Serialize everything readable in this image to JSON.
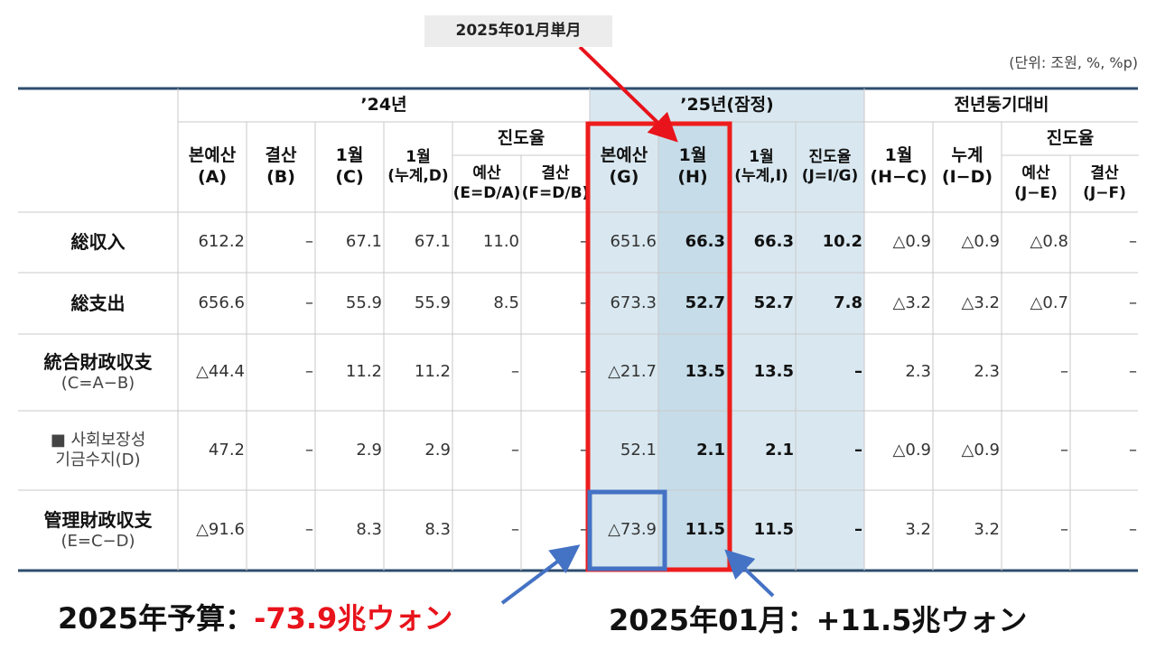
{
  "callout_top": "2025年01月単月",
  "unit_note": "(단위: 조원, %, %p)",
  "table": {
    "groups": [
      "’24년",
      "’25년(잠정)",
      "전년동기대비"
    ],
    "sub_groups": [
      "진도율",
      "진도율"
    ],
    "columns": [
      "본예산\n(A)",
      "결산\n(B)",
      "1월\n(C)",
      "1월\n(누계,D)",
      "예산\n(E=D/A)",
      "결산\n(F=D/B)",
      "본예산\n(G)",
      "1월\n(H)",
      "1월\n(누계,I)",
      "진도율\n(J=I/G)",
      "1월\n(H−C)",
      "누계\n(I−D)",
      "예산\n(J−E)",
      "결산\n(J−F)"
    ],
    "rows": [
      {
        "label": [
          "総収入"
        ],
        "values": [
          "612.2",
          "–",
          "67.1",
          "67.1",
          "11.0",
          "–",
          "651.6",
          "66.3",
          "66.3",
          "10.2",
          "△0.9",
          "△0.9",
          "△0.8",
          "–"
        ]
      },
      {
        "label": [
          "総支出"
        ],
        "values": [
          "656.6",
          "–",
          "55.9",
          "55.9",
          "8.5",
          "–",
          "673.3",
          "52.7",
          "52.7",
          "7.8",
          "△3.2",
          "△3.2",
          "△0.7",
          "–"
        ]
      },
      {
        "label": [
          "統合財政収支",
          "(C=A−B)"
        ],
        "values": [
          "△44.4",
          "–",
          "11.2",
          "11.2",
          "–",
          "–",
          "△21.7",
          "13.5",
          "13.5",
          "–",
          "2.3",
          "2.3",
          "–",
          "–"
        ]
      },
      {
        "label": [
          "■ 사회보장성",
          "기금수지(D)"
        ],
        "values": [
          "47.2",
          "–",
          "2.9",
          "2.9",
          "–",
          "–",
          "52.1",
          "2.1",
          "2.1",
          "–",
          "△0.9",
          "△0.9",
          "–",
          "–"
        ]
      },
      {
        "label": [
          "管理財政収支",
          "(E=C−D)"
        ],
        "values": [
          "△91.6",
          "–",
          "8.3",
          "8.3",
          "–",
          "–",
          "△73.9",
          "11.5",
          "11.5",
          "–",
          "3.2",
          "3.2",
          "–",
          "–"
        ]
      }
    ]
  },
  "bottom_left": {
    "label": "2025年予算：",
    "value": "-73.9兆ウォン"
  },
  "bottom_right": {
    "label": "2025年01月：",
    "value": "+11.5兆ウォン"
  }
}
